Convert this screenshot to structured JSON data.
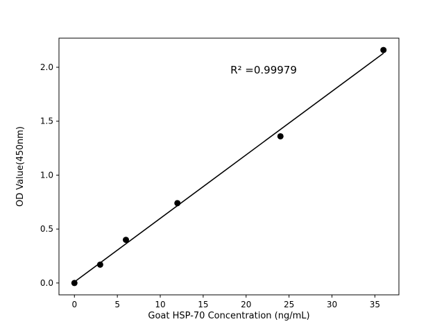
{
  "figure": {
    "background_color": "#ffffff",
    "frame_color": "#000000"
  },
  "chart_data": {
    "type": "scatter",
    "title": "",
    "xlabel": "Goat HSP-70 Concentration (ng/mL)",
    "ylabel": "OD Value(450nm)",
    "annotation": "R² =0.99979",
    "x": [
      0,
      3,
      6,
      12,
      24,
      36
    ],
    "y": [
      0.0,
      0.17,
      0.4,
      0.74,
      1.36,
      2.16
    ],
    "xticks": [
      0,
      5,
      10,
      15,
      20,
      25,
      30,
      35
    ],
    "xtick_labels": [
      "0",
      "5",
      "10",
      "15",
      "20",
      "25",
      "30",
      "35"
    ],
    "yticks": [
      0.0,
      0.5,
      1.0,
      1.5,
      2.0
    ],
    "ytick_labels": [
      "0.0",
      "0.5",
      "1.0",
      "1.5",
      "2.0"
    ],
    "xlim": [
      -1.8,
      37.8
    ],
    "ylim": [
      -0.11,
      2.27
    ],
    "marker_color": "#000000",
    "line_color": "#000000",
    "trendline": true,
    "grid": false,
    "legend": "none"
  }
}
